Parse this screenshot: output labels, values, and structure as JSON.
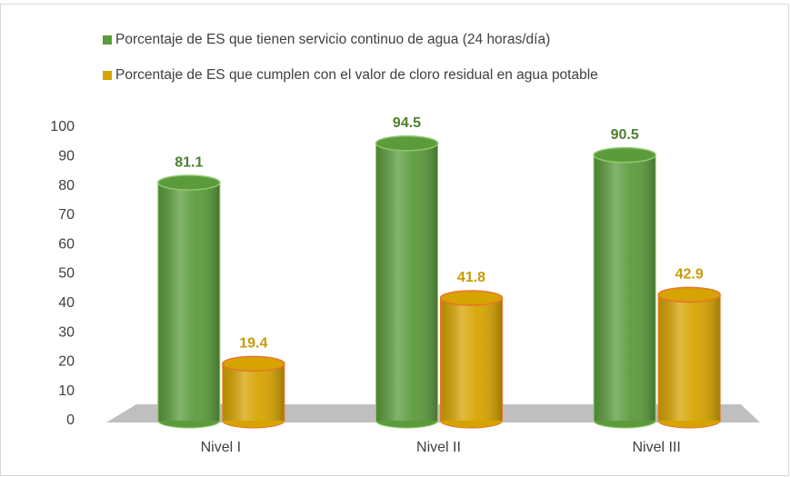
{
  "chart_data": {
    "type": "bar",
    "categories": [
      "Nivel I",
      "Nivel II",
      "Nivel III"
    ],
    "series": [
      {
        "name": "Porcentaje de ES que tienen servicio continuo de agua (24 horas/día)",
        "color": "#5b9b3c",
        "label_color": "#4e8030",
        "values": [
          81.1,
          94.5,
          90.5
        ]
      },
      {
        "name": "Porcentaje de ES que cumplen con el valor de cloro residual en agua potable",
        "color": "#d6a300",
        "label_color": "#c99a00",
        "values": [
          19.4,
          41.8,
          42.9
        ]
      }
    ],
    "ylim": [
      0,
      100
    ],
    "yticks": [
      0,
      10,
      20,
      30,
      40,
      50,
      60,
      70,
      80,
      90,
      100
    ],
    "grid": false,
    "legend": "top"
  }
}
